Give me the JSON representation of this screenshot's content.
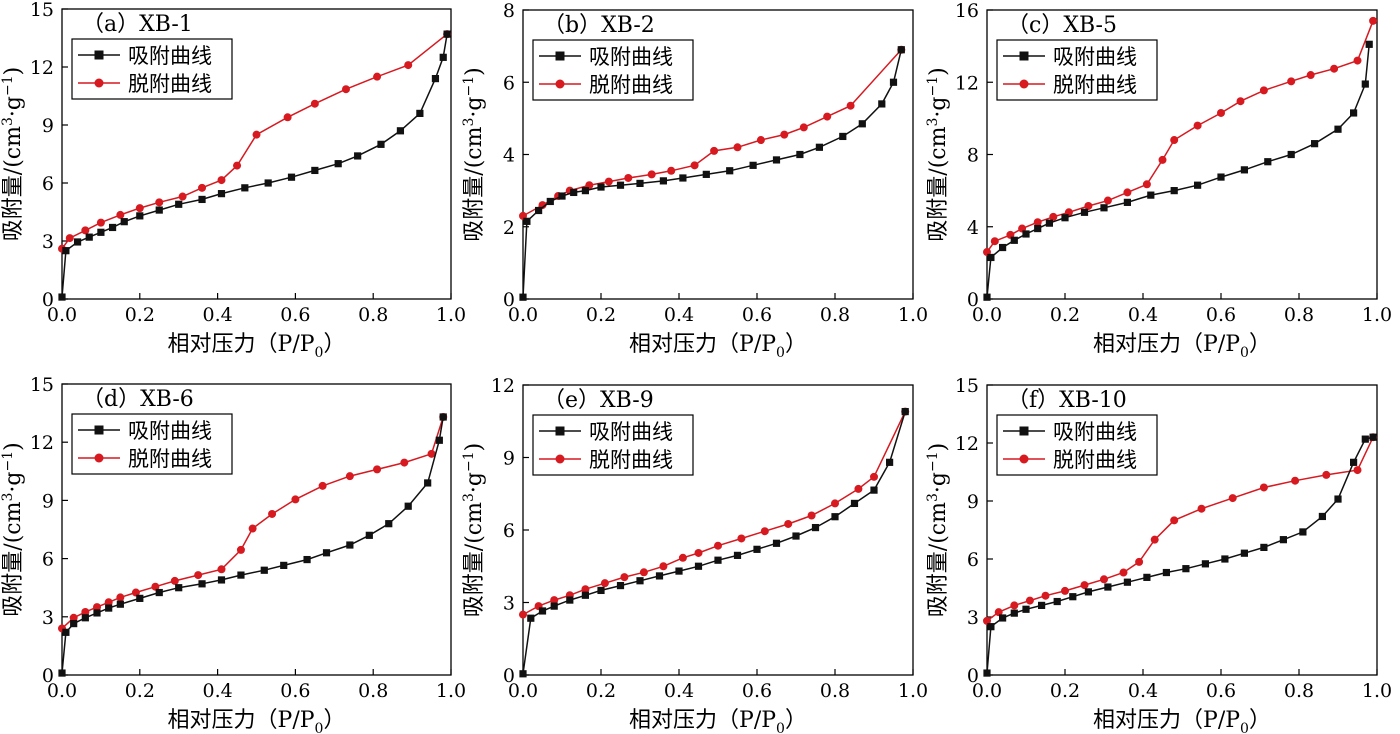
{
  "chart_data": [
    {
      "type": "line",
      "title": "（a）XB-1",
      "xlabel": "相对压力（P/P0）",
      "ylabel": "吸附量/(cm3·g−1)",
      "xlim": [
        0,
        1.0
      ],
      "ylim": [
        0,
        15
      ],
      "xticks": [
        "0.0",
        "0.2",
        "0.4",
        "0.6",
        "0.8",
        "1.0"
      ],
      "yticks": [
        "0",
        "3",
        "6",
        "9",
        "12",
        "15"
      ],
      "legend": "top-left",
      "series": [
        {
          "name": "吸附曲线",
          "color": "#111111",
          "marker": "square",
          "x": [
            0.0,
            0.01,
            0.04,
            0.07,
            0.1,
            0.13,
            0.16,
            0.2,
            0.25,
            0.3,
            0.36,
            0.41,
            0.47,
            0.53,
            0.59,
            0.65,
            0.71,
            0.76,
            0.82,
            0.87,
            0.92,
            0.96,
            0.98,
            0.99
          ],
          "y": [
            0.1,
            2.5,
            2.95,
            3.2,
            3.45,
            3.7,
            4.0,
            4.3,
            4.6,
            4.9,
            5.15,
            5.45,
            5.75,
            6.0,
            6.3,
            6.65,
            7.0,
            7.4,
            8.0,
            8.7,
            9.6,
            11.4,
            12.5,
            13.7
          ]
        },
        {
          "name": "脱附曲线",
          "color": "#d71920",
          "marker": "circle",
          "x": [
            0.0,
            0.02,
            0.06,
            0.1,
            0.15,
            0.2,
            0.25,
            0.31,
            0.36,
            0.41,
            0.45,
            0.5,
            0.58,
            0.65,
            0.73,
            0.81,
            0.89,
            0.99
          ],
          "y": [
            2.6,
            3.15,
            3.55,
            3.95,
            4.35,
            4.7,
            5.0,
            5.3,
            5.75,
            6.15,
            6.9,
            8.5,
            9.4,
            10.1,
            10.85,
            11.5,
            12.1,
            13.7
          ]
        }
      ]
    },
    {
      "type": "line",
      "title": "（b）XB-2",
      "xlabel": "相对压力（P/P0）",
      "ylabel": "吸附量/(cm3·g−1)",
      "xlim": [
        0,
        1.0
      ],
      "ylim": [
        0,
        8
      ],
      "xticks": [
        "0.0",
        "0.2",
        "0.4",
        "0.6",
        "0.8",
        "1.0"
      ],
      "yticks": [
        "0",
        "2",
        "4",
        "6",
        "8"
      ],
      "legend": "top-left",
      "series": [
        {
          "name": "吸附曲线",
          "color": "#111111",
          "marker": "square",
          "x": [
            0.0,
            0.01,
            0.04,
            0.07,
            0.1,
            0.13,
            0.16,
            0.2,
            0.25,
            0.3,
            0.36,
            0.41,
            0.47,
            0.53,
            0.59,
            0.65,
            0.71,
            0.76,
            0.82,
            0.87,
            0.92,
            0.95,
            0.97
          ],
          "y": [
            0.05,
            2.15,
            2.45,
            2.7,
            2.85,
            2.95,
            3.0,
            3.1,
            3.15,
            3.2,
            3.27,
            3.35,
            3.45,
            3.55,
            3.7,
            3.85,
            4.0,
            4.2,
            4.5,
            4.85,
            5.4,
            6.0,
            6.9
          ]
        },
        {
          "name": "脱附曲线",
          "color": "#d71920",
          "marker": "circle",
          "x": [
            0.0,
            0.05,
            0.09,
            0.12,
            0.17,
            0.22,
            0.27,
            0.33,
            0.38,
            0.44,
            0.49,
            0.55,
            0.61,
            0.67,
            0.72,
            0.78,
            0.84,
            0.97
          ],
          "y": [
            2.3,
            2.6,
            2.85,
            3.0,
            3.15,
            3.25,
            3.35,
            3.45,
            3.55,
            3.7,
            4.1,
            4.2,
            4.4,
            4.55,
            4.75,
            5.05,
            5.35,
            6.9
          ]
        }
      ]
    },
    {
      "type": "line",
      "title": "（c）XB-5",
      "xlabel": "相对压力（P/P0）",
      "ylabel": "吸附量/(cm3·g−1)",
      "xlim": [
        0,
        1.0
      ],
      "ylim": [
        0,
        16
      ],
      "xticks": [
        "0.0",
        "0.2",
        "0.4",
        "0.6",
        "0.8",
        "1.0"
      ],
      "yticks": [
        "0",
        "4",
        "8",
        "12",
        "16"
      ],
      "legend": "top-left",
      "series": [
        {
          "name": "吸附曲线",
          "color": "#111111",
          "marker": "square",
          "x": [
            0.0,
            0.01,
            0.04,
            0.07,
            0.1,
            0.13,
            0.16,
            0.2,
            0.25,
            0.3,
            0.36,
            0.42,
            0.48,
            0.54,
            0.6,
            0.66,
            0.72,
            0.78,
            0.84,
            0.9,
            0.94,
            0.97,
            0.98
          ],
          "y": [
            0.1,
            2.3,
            2.85,
            3.25,
            3.6,
            3.9,
            4.2,
            4.5,
            4.8,
            5.05,
            5.35,
            5.75,
            6.0,
            6.3,
            6.75,
            7.15,
            7.6,
            8.0,
            8.6,
            9.4,
            10.3,
            11.9,
            14.1
          ]
        },
        {
          "name": "脱附曲线",
          "color": "#d71920",
          "marker": "circle",
          "x": [
            0.0,
            0.02,
            0.06,
            0.09,
            0.13,
            0.17,
            0.21,
            0.26,
            0.31,
            0.36,
            0.41,
            0.45,
            0.48,
            0.54,
            0.6,
            0.65,
            0.71,
            0.78,
            0.83,
            0.89,
            0.95,
            0.99
          ],
          "y": [
            2.6,
            3.2,
            3.55,
            3.9,
            4.25,
            4.55,
            4.8,
            5.15,
            5.45,
            5.9,
            6.35,
            7.7,
            8.8,
            9.6,
            10.3,
            10.95,
            11.55,
            12.05,
            12.4,
            12.75,
            13.2,
            15.4
          ]
        }
      ]
    },
    {
      "type": "line",
      "title": "（d）XB-6",
      "xlabel": "相对压力（P/P0）",
      "ylabel": "吸附量/(cm3·g−1)",
      "xlim": [
        0,
        1.0
      ],
      "ylim": [
        0,
        15
      ],
      "xticks": [
        "0.0",
        "0.2",
        "0.4",
        "0.6",
        "0.8",
        "1.0"
      ],
      "yticks": [
        "0",
        "3",
        "6",
        "9",
        "12",
        "15"
      ],
      "legend": "top-left",
      "series": [
        {
          "name": "吸附曲线",
          "color": "#111111",
          "marker": "square",
          "x": [
            0.0,
            0.01,
            0.03,
            0.06,
            0.09,
            0.12,
            0.15,
            0.2,
            0.25,
            0.3,
            0.36,
            0.41,
            0.46,
            0.52,
            0.57,
            0.63,
            0.68,
            0.74,
            0.79,
            0.84,
            0.89,
            0.94,
            0.97,
            0.98
          ],
          "y": [
            0.1,
            2.2,
            2.65,
            2.95,
            3.2,
            3.45,
            3.65,
            3.95,
            4.25,
            4.5,
            4.7,
            4.9,
            5.15,
            5.4,
            5.65,
            5.95,
            6.3,
            6.7,
            7.2,
            7.8,
            8.7,
            9.9,
            12.1,
            13.3
          ]
        },
        {
          "name": "脱附曲线",
          "color": "#d71920",
          "marker": "circle",
          "x": [
            0.0,
            0.03,
            0.06,
            0.09,
            0.12,
            0.15,
            0.19,
            0.24,
            0.29,
            0.35,
            0.41,
            0.46,
            0.49,
            0.54,
            0.6,
            0.67,
            0.74,
            0.81,
            0.88,
            0.95,
            0.98
          ],
          "y": [
            2.4,
            2.95,
            3.25,
            3.5,
            3.75,
            4.0,
            4.25,
            4.55,
            4.85,
            5.15,
            5.45,
            6.45,
            7.55,
            8.3,
            9.05,
            9.75,
            10.25,
            10.6,
            10.95,
            11.4,
            13.3
          ]
        }
      ]
    },
    {
      "type": "line",
      "title": "（e）XB-9",
      "xlabel": "相对压力（P/P0）",
      "ylabel": "吸附量/(cm3·g−1)",
      "xlim": [
        0,
        1.0
      ],
      "ylim": [
        0,
        12
      ],
      "xticks": [
        "0.0",
        "0.2",
        "0.4",
        "0.6",
        "0.8",
        "1.0"
      ],
      "yticks": [
        "0",
        "3",
        "6",
        "9",
        "12"
      ],
      "legend": "top-left",
      "series": [
        {
          "name": "吸附曲线",
          "color": "#111111",
          "marker": "square",
          "x": [
            0.0,
            0.02,
            0.05,
            0.08,
            0.12,
            0.16,
            0.2,
            0.25,
            0.3,
            0.35,
            0.4,
            0.45,
            0.5,
            0.55,
            0.6,
            0.65,
            0.7,
            0.75,
            0.8,
            0.85,
            0.9,
            0.94,
            0.98
          ],
          "y": [
            0.05,
            2.35,
            2.65,
            2.85,
            3.1,
            3.3,
            3.5,
            3.7,
            3.9,
            4.1,
            4.3,
            4.5,
            4.75,
            4.95,
            5.2,
            5.45,
            5.75,
            6.1,
            6.55,
            7.1,
            7.65,
            8.8,
            10.9
          ]
        },
        {
          "name": "脱附曲线",
          "color": "#d71920",
          "marker": "circle",
          "x": [
            0.0,
            0.04,
            0.08,
            0.12,
            0.16,
            0.21,
            0.26,
            0.31,
            0.36,
            0.41,
            0.45,
            0.5,
            0.56,
            0.62,
            0.68,
            0.74,
            0.8,
            0.86,
            0.9,
            0.98
          ],
          "y": [
            2.5,
            2.85,
            3.1,
            3.3,
            3.55,
            3.8,
            4.05,
            4.25,
            4.5,
            4.85,
            5.05,
            5.35,
            5.65,
            5.95,
            6.25,
            6.6,
            7.1,
            7.7,
            8.2,
            10.9
          ]
        }
      ]
    },
    {
      "type": "line",
      "title": "（f）XB-10",
      "xlabel": "相对压力（P/P0）",
      "ylabel": "吸附量/(cm3·g−1)",
      "xlim": [
        0,
        1.0
      ],
      "ylim": [
        0,
        15
      ],
      "xticks": [
        "0.0",
        "0.2",
        "0.4",
        "0.6",
        "0.8",
        "1.0"
      ],
      "yticks": [
        "0",
        "3",
        "6",
        "9",
        "12",
        "15"
      ],
      "legend": "top-left",
      "series": [
        {
          "name": "吸附曲线",
          "color": "#111111",
          "marker": "square",
          "x": [
            0.0,
            0.01,
            0.04,
            0.07,
            0.1,
            0.14,
            0.18,
            0.22,
            0.26,
            0.31,
            0.36,
            0.41,
            0.46,
            0.51,
            0.56,
            0.61,
            0.66,
            0.71,
            0.76,
            0.81,
            0.86,
            0.9,
            0.94,
            0.97,
            0.99
          ],
          "y": [
            0.1,
            2.5,
            2.95,
            3.2,
            3.4,
            3.6,
            3.8,
            4.05,
            4.3,
            4.55,
            4.8,
            5.05,
            5.3,
            5.5,
            5.75,
            6.0,
            6.3,
            6.6,
            7.0,
            7.4,
            8.2,
            9.1,
            11.0,
            12.2,
            12.3
          ]
        },
        {
          "name": "脱附曲线",
          "color": "#d71920",
          "marker": "circle",
          "x": [
            0.0,
            0.03,
            0.07,
            0.11,
            0.15,
            0.2,
            0.25,
            0.3,
            0.35,
            0.39,
            0.43,
            0.48,
            0.55,
            0.63,
            0.71,
            0.79,
            0.87,
            0.95,
            0.99
          ],
          "y": [
            2.8,
            3.25,
            3.6,
            3.85,
            4.1,
            4.35,
            4.65,
            4.95,
            5.3,
            5.85,
            7.0,
            8.0,
            8.6,
            9.15,
            9.7,
            10.05,
            10.35,
            10.6,
            12.3
          ]
        }
      ]
    }
  ]
}
